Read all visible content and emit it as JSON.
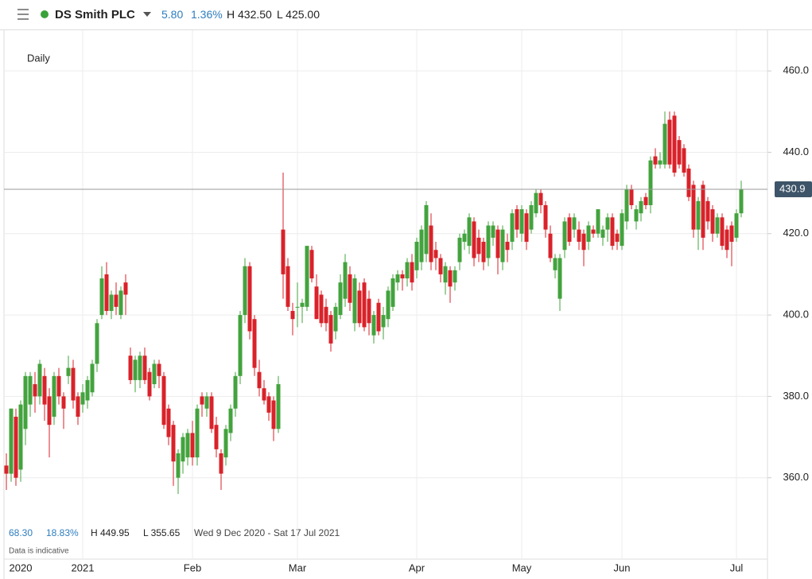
{
  "header": {
    "name": "DS Smith PLC",
    "change": "5.80",
    "change_pct": "1.36%",
    "high": "H 432.50",
    "low": "L 425.00"
  },
  "footer": {
    "change": "68.30",
    "change_pct": "18.83%",
    "high": "H 449.95",
    "low": "L 355.65",
    "range": "Wed 9 Dec 2020 - Sat 17 Jul 2021",
    "note": "Data is indicative"
  },
  "chart_data": {
    "type": "candlestick",
    "interval": "Daily",
    "up_color": "#43a33e",
    "down_color": "#d9222a",
    "last_price": 430.9,
    "ylim": [
      340,
      470
    ],
    "yticks": [
      {
        "value": 360,
        "label": "360.0"
      },
      {
        "value": 380,
        "label": "380.0"
      },
      {
        "value": 400,
        "label": "400.0"
      },
      {
        "value": 420,
        "label": "420.0"
      },
      {
        "value": 440,
        "label": "440.0"
      },
      {
        "value": 460,
        "label": "460.0"
      }
    ],
    "xlim": [
      -0.5,
      159.5
    ],
    "xticks": [
      {
        "value": 3,
        "label": "2020"
      },
      {
        "value": 16,
        "label": "2021"
      },
      {
        "value": 39,
        "label": "Feb"
      },
      {
        "value": 61,
        "label": "Mar"
      },
      {
        "value": 86,
        "label": "Apr"
      },
      {
        "value": 108,
        "label": "May"
      },
      {
        "value": 129,
        "label": "Jun"
      },
      {
        "value": 153,
        "label": "Jul"
      }
    ],
    "grid": true,
    "candles": [
      [
        363,
        366,
        357,
        361
      ],
      [
        361,
        377,
        359,
        377
      ],
      [
        375,
        377,
        358,
        360
      ],
      [
        362,
        379,
        359,
        378
      ],
      [
        372,
        386,
        368,
        385
      ],
      [
        378,
        386,
        375,
        385
      ],
      [
        383,
        386,
        376,
        380
      ],
      [
        380,
        389,
        378,
        388
      ],
      [
        385,
        387,
        374,
        378
      ],
      [
        380,
        382,
        365,
        373
      ],
      [
        375,
        386,
        373,
        385
      ],
      [
        385,
        387,
        378,
        380
      ],
      [
        380,
        381,
        372,
        377
      ],
      [
        385,
        390,
        383,
        387
      ],
      [
        387,
        389,
        377,
        379
      ],
      [
        380,
        381,
        373,
        375
      ],
      [
        378,
        383,
        376,
        381
      ],
      [
        379,
        385,
        377,
        384
      ],
      [
        381,
        389,
        380,
        388
      ],
      [
        388,
        399,
        386,
        398
      ],
      [
        400,
        412,
        399,
        409
      ],
      [
        410,
        413,
        400,
        401
      ],
      [
        401,
        406,
        399,
        405
      ],
      [
        405,
        408,
        400,
        402
      ],
      [
        400,
        407,
        399,
        406
      ],
      [
        408,
        410,
        400,
        405
      ],
      [
        390,
        392,
        383,
        384
      ],
      [
        384,
        390,
        381,
        389
      ],
      [
        384,
        391,
        382,
        390
      ],
      [
        390,
        392,
        383,
        384
      ],
      [
        386,
        387,
        379,
        380
      ],
      [
        383,
        389,
        382,
        388
      ],
      [
        388,
        389,
        382,
        385
      ],
      [
        385,
        386,
        372,
        373
      ],
      [
        377,
        378,
        368,
        370
      ],
      [
        373,
        374,
        358,
        364
      ],
      [
        360,
        367,
        356,
        366
      ],
      [
        364,
        371,
        361,
        370
      ],
      [
        365,
        372,
        363,
        371
      ],
      [
        371,
        374,
        363,
        365
      ],
      [
        365,
        378,
        363,
        377
      ],
      [
        380,
        381,
        375,
        378
      ],
      [
        377,
        381,
        375,
        380
      ],
      [
        380,
        381,
        371,
        372
      ],
      [
        373,
        375,
        365,
        367
      ],
      [
        366,
        367,
        357,
        361
      ],
      [
        365,
        373,
        363,
        372
      ],
      [
        371,
        378,
        369,
        377
      ],
      [
        377,
        386,
        375,
        385
      ],
      [
        385,
        401,
        383,
        400
      ],
      [
        400,
        414,
        398,
        412
      ],
      [
        412,
        413,
        394,
        396
      ],
      [
        399,
        400,
        385,
        387
      ],
      [
        386,
        389,
        380,
        382
      ],
      [
        382,
        384,
        378,
        379
      ],
      [
        380,
        381,
        374,
        376
      ],
      [
        379,
        380,
        369,
        372
      ],
      [
        372,
        385,
        371,
        383
      ],
      [
        421,
        435,
        404,
        410
      ],
      [
        412,
        414,
        401,
        402
      ],
      [
        401,
        403,
        395,
        399
      ],
      [
        402,
        408,
        397,
        402
      ],
      [
        402,
        404,
        398,
        403
      ],
      [
        402,
        417,
        401,
        417
      ],
      [
        416,
        417,
        408,
        409
      ],
      [
        407,
        410,
        399,
        399
      ],
      [
        405,
        406,
        397,
        398
      ],
      [
        402,
        404,
        396,
        398
      ],
      [
        400,
        401,
        391,
        393
      ],
      [
        396,
        403,
        394,
        402
      ],
      [
        400,
        410,
        399,
        408
      ],
      [
        404,
        415,
        402,
        413
      ],
      [
        410,
        412,
        401,
        403
      ],
      [
        398,
        410,
        396,
        409
      ],
      [
        406,
        408,
        397,
        398
      ],
      [
        408,
        409,
        396,
        397
      ],
      [
        404,
        406,
        395,
        398
      ],
      [
        395,
        401,
        393,
        400
      ],
      [
        403,
        404,
        395,
        396
      ],
      [
        397,
        402,
        394,
        400
      ],
      [
        399,
        407,
        397,
        406
      ],
      [
        402,
        410,
        401,
        409
      ],
      [
        408,
        411,
        406,
        410
      ],
      [
        410,
        411,
        406,
        409
      ],
      [
        409,
        414,
        407,
        413
      ],
      [
        413,
        415,
        406,
        408
      ],
      [
        411,
        419,
        409,
        418
      ],
      [
        413,
        422,
        411,
        421
      ],
      [
        415,
        428,
        413,
        427
      ],
      [
        422,
        425,
        411,
        413
      ],
      [
        416,
        418,
        411,
        414
      ],
      [
        414,
        415,
        408,
        410
      ],
      [
        408,
        413,
        405,
        412
      ],
      [
        411,
        412,
        403,
        407
      ],
      [
        408,
        412,
        406,
        411
      ],
      [
        413,
        420,
        411,
        419
      ],
      [
        418,
        421,
        416,
        420
      ],
      [
        417,
        425,
        415,
        424
      ],
      [
        423,
        424,
        412,
        414
      ],
      [
        419,
        421,
        413,
        415
      ],
      [
        418,
        419,
        411,
        413
      ],
      [
        414,
        423,
        412,
        422
      ],
      [
        419,
        423,
        417,
        422
      ],
      [
        421,
        422,
        410,
        414
      ],
      [
        413,
        422,
        411,
        421
      ],
      [
        418,
        420,
        413,
        416
      ],
      [
        418,
        426,
        416,
        425
      ],
      [
        426,
        427,
        419,
        421
      ],
      [
        420,
        427,
        418,
        426
      ],
      [
        425,
        426,
        416,
        418
      ],
      [
        421,
        428,
        420,
        427
      ],
      [
        425,
        431,
        424,
        430
      ],
      [
        430,
        431,
        425,
        427
      ],
      [
        427,
        428,
        419,
        421
      ],
      [
        420,
        422,
        413,
        414
      ],
      [
        411,
        415,
        409,
        414
      ],
      [
        404,
        415,
        401,
        414
      ],
      [
        416,
        424,
        414,
        423
      ],
      [
        424,
        425,
        417,
        418
      ],
      [
        421,
        425,
        419,
        424
      ],
      [
        421,
        423,
        416,
        418
      ],
      [
        420,
        421,
        412,
        416
      ],
      [
        418,
        423,
        416,
        422
      ],
      [
        421,
        422,
        419,
        420
      ],
      [
        420,
        426,
        419,
        426
      ],
      [
        419,
        422,
        417,
        421
      ],
      [
        421,
        425,
        418,
        424
      ],
      [
        424,
        425,
        416,
        417
      ],
      [
        420,
        421,
        416,
        418
      ],
      [
        417,
        426,
        416,
        425
      ],
      [
        423,
        432,
        421,
        431
      ],
      [
        431,
        432,
        426,
        427
      ],
      [
        423,
        427,
        421,
        426
      ],
      [
        425,
        429,
        423,
        428
      ],
      [
        429,
        430,
        426,
        427
      ],
      [
        427,
        439,
        425,
        438
      ],
      [
        439,
        441,
        436,
        437
      ],
      [
        437,
        440,
        436,
        438
      ],
      [
        437,
        450,
        436,
        447
      ],
      [
        448,
        450,
        436,
        437
      ],
      [
        449,
        450,
        434,
        435
      ],
      [
        443,
        444,
        436,
        437
      ],
      [
        441,
        442,
        434,
        435
      ],
      [
        436,
        437,
        428,
        429
      ],
      [
        432,
        433,
        419,
        421
      ],
      [
        421,
        429,
        416,
        428
      ],
      [
        432,
        433,
        416,
        419
      ],
      [
        428,
        429,
        421,
        423
      ],
      [
        426,
        427,
        418,
        420
      ],
      [
        420,
        425,
        419,
        424
      ],
      [
        424,
        425,
        416,
        417
      ],
      [
        421,
        422,
        414,
        416
      ],
      [
        422,
        423,
        412,
        418
      ],
      [
        419,
        426,
        418,
        425
      ],
      [
        425,
        433,
        424,
        431
      ]
    ]
  }
}
